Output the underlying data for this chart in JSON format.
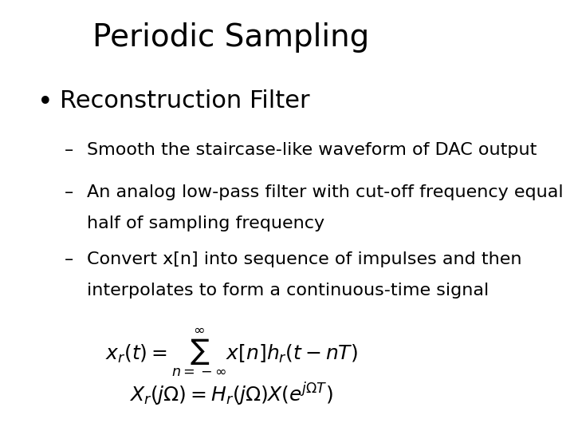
{
  "title": "Periodic Sampling",
  "bullet": "Reconstruction Filter",
  "dash1": "Smooth the staircase-like waveform of DAC output",
  "dash2_line1": "An analog low-pass filter with cut-off frequency equal",
  "dash2_line2": "half of sampling frequency",
  "dash3_line1": "Convert x[n] into sequence of impulses and then",
  "dash3_line2": "interpolates to form a continuous-time signal",
  "eq1": "$x_r(t) = \\sum_{n=-\\infty}^{\\infty} x[n]h_r(t - nT)$",
  "eq2": "$X_r(j\\Omega) = H_r(j\\Omega)X(e^{j\\Omega T})$",
  "bg_color": "#ffffff",
  "text_color": "#000000",
  "title_fontsize": 28,
  "bullet_fontsize": 22,
  "dash_fontsize": 16,
  "eq_fontsize": 18
}
